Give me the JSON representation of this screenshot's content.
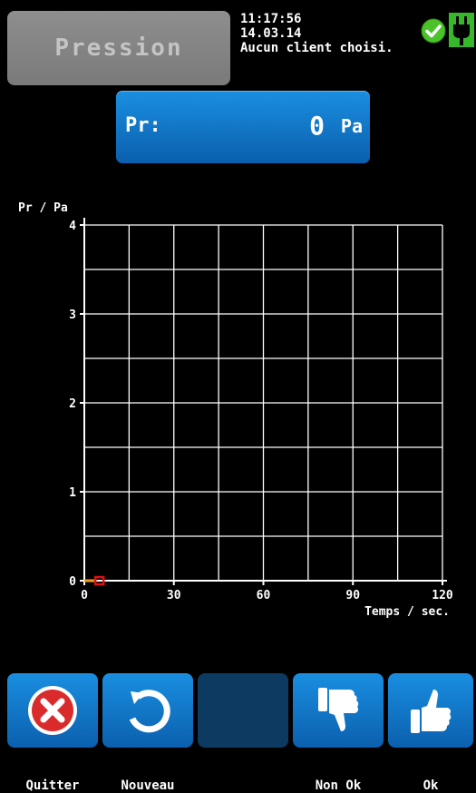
{
  "header": {
    "title": "Pression",
    "time": "11:17:56",
    "date": "14.03.14",
    "client": "Aucun client choisi."
  },
  "reading": {
    "label": "Pr:",
    "value": "0",
    "unit": "Pa"
  },
  "chart_data": {
    "type": "line",
    "ylabel": "Pr / Pa",
    "xlabel": "Temps / sec.",
    "xlim": [
      0,
      120
    ],
    "ylim": [
      0,
      4
    ],
    "x_ticks": [
      0,
      30,
      60,
      90,
      120
    ],
    "y_ticks": [
      0,
      1,
      2,
      3,
      4
    ],
    "grid": true,
    "series": [
      {
        "color": "#e01010",
        "points": [
          [
            0,
            0
          ],
          [
            4,
            0
          ]
        ]
      }
    ]
  },
  "buttons": [
    {
      "label": "Quitter",
      "icon": "x-circle-icon"
    },
    {
      "label": "Nouveau",
      "icon": "refresh-icon"
    },
    {
      "label": "",
      "icon": ""
    },
    {
      "label": "Non Ok",
      "icon": "thumbs-down-icon"
    },
    {
      "label": "Ok",
      "icon": "thumbs-up-icon"
    }
  ]
}
